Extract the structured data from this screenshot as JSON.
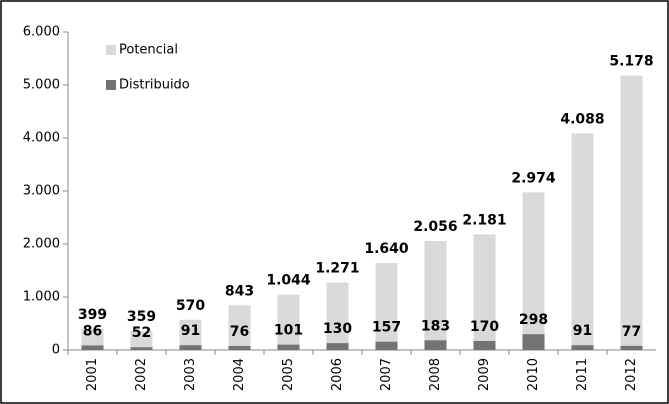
{
  "chart_data": {
    "type": "bar",
    "bar_mode": "overlay",
    "categories": [
      "2001",
      "2002",
      "2003",
      "2004",
      "2005",
      "2006",
      "2007",
      "2008",
      "2009",
      "2010",
      "2011",
      "2012"
    ],
    "series": [
      {
        "name": "Potencial",
        "color": "#d9d9d9",
        "values": [
          399,
          359,
          570,
          843,
          1044,
          1271,
          1640,
          2056,
          2181,
          2974,
          4088,
          5178
        ],
        "value_labels": [
          "399",
          "359",
          "570",
          "843",
          "1.044",
          "1.271",
          "1.640",
          "2.056",
          "2.181",
          "2.974",
          "4.088",
          "5.178"
        ]
      },
      {
        "name": "Distribuido",
        "color": "#737373",
        "values": [
          86,
          52,
          91,
          76,
          101,
          130,
          157,
          183,
          170,
          298,
          91,
          77
        ]
      }
    ],
    "ylim": [
      0,
      6000
    ],
    "yticks": [
      0,
      {
        "value": 1000,
        "label": "1.000"
      },
      {
        "value": 2000,
        "label": "2.000"
      },
      {
        "value": 3000,
        "label": "3.000"
      },
      {
        "value": 4000,
        "label": "4.000"
      },
      {
        "value": 5000,
        "label": "5.000"
      },
      {
        "value": 6000,
        "label": "6.000"
      }
    ],
    "legend": "top-left",
    "grid": false
  }
}
